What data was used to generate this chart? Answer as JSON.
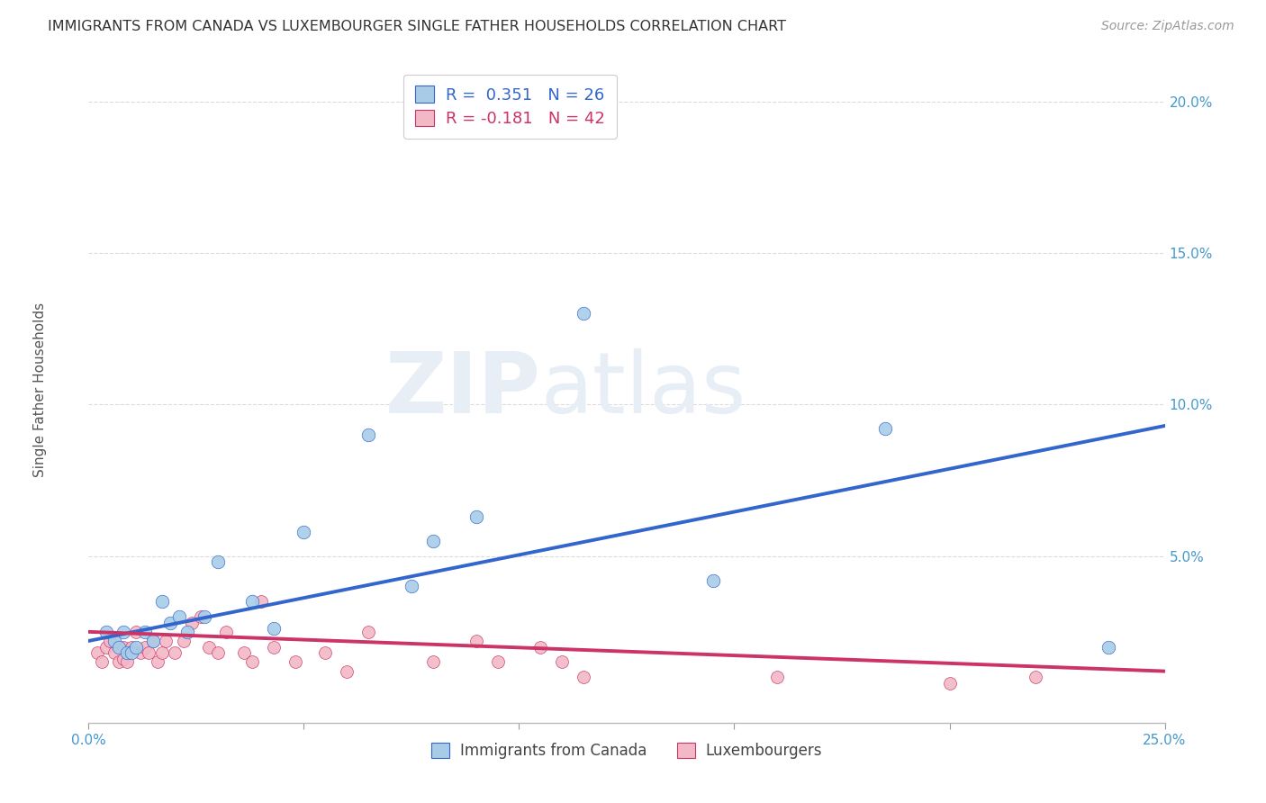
{
  "title": "IMMIGRANTS FROM CANADA VS LUXEMBOURGER SINGLE FATHER HOUSEHOLDS CORRELATION CHART",
  "source": "Source: ZipAtlas.com",
  "ylabel": "Single Father Households",
  "legend_blue_r": "R =  0.351",
  "legend_blue_n": "N = 26",
  "legend_pink_r": "R = -0.181",
  "legend_pink_n": "N = 42",
  "legend_blue_label": "Immigrants from Canada",
  "legend_pink_label": "Luxembourgers",
  "xlim": [
    0.0,
    0.25
  ],
  "ylim": [
    -0.005,
    0.215
  ],
  "ytick_values": [
    0.05,
    0.1,
    0.15,
    0.2
  ],
  "ytick_labels": [
    "5.0%",
    "10.0%",
    "15.0%",
    "20.0%"
  ],
  "xtick_values": [
    0.0,
    0.05,
    0.1,
    0.15,
    0.2,
    0.25
  ],
  "xtick_labels": [
    "0.0%",
    "",
    "",
    "",
    "",
    "25.0%"
  ],
  "blue_color": "#a8cce8",
  "pink_color": "#f2b8c6",
  "blue_line_color": "#3366cc",
  "pink_line_color": "#cc3366",
  "blue_points_x": [
    0.004,
    0.006,
    0.007,
    0.008,
    0.009,
    0.01,
    0.011,
    0.013,
    0.015,
    0.017,
    0.019,
    0.021,
    0.023,
    0.027,
    0.03,
    0.038,
    0.043,
    0.05,
    0.065,
    0.075,
    0.08,
    0.09,
    0.115,
    0.145,
    0.185,
    0.237
  ],
  "blue_points_y": [
    0.025,
    0.022,
    0.02,
    0.025,
    0.018,
    0.018,
    0.02,
    0.025,
    0.022,
    0.035,
    0.028,
    0.03,
    0.025,
    0.03,
    0.048,
    0.035,
    0.026,
    0.058,
    0.09,
    0.04,
    0.055,
    0.063,
    0.13,
    0.042,
    0.092,
    0.02
  ],
  "pink_points_x": [
    0.002,
    0.003,
    0.004,
    0.005,
    0.006,
    0.007,
    0.008,
    0.008,
    0.009,
    0.01,
    0.011,
    0.012,
    0.013,
    0.014,
    0.015,
    0.016,
    0.017,
    0.018,
    0.02,
    0.022,
    0.024,
    0.026,
    0.028,
    0.03,
    0.032,
    0.036,
    0.038,
    0.04,
    0.043,
    0.048,
    0.055,
    0.06,
    0.065,
    0.08,
    0.09,
    0.095,
    0.105,
    0.11,
    0.115,
    0.16,
    0.2,
    0.22
  ],
  "pink_points_y": [
    0.018,
    0.015,
    0.02,
    0.022,
    0.018,
    0.015,
    0.02,
    0.016,
    0.015,
    0.02,
    0.025,
    0.018,
    0.02,
    0.018,
    0.022,
    0.015,
    0.018,
    0.022,
    0.018,
    0.022,
    0.028,
    0.03,
    0.02,
    0.018,
    0.025,
    0.018,
    0.015,
    0.035,
    0.02,
    0.015,
    0.018,
    0.012,
    0.025,
    0.015,
    0.022,
    0.015,
    0.02,
    0.015,
    0.01,
    0.01,
    0.008,
    0.01
  ],
  "blue_line_x": [
    0.0,
    0.25
  ],
  "blue_line_y": [
    0.022,
    0.093
  ],
  "pink_line_x": [
    0.0,
    0.25
  ],
  "pink_line_y": [
    0.025,
    0.012
  ],
  "grid_color": "#cccccc",
  "tick_color": "#4499cc",
  "title_color": "#333333",
  "source_color": "#999999",
  "ylabel_color": "#555555"
}
